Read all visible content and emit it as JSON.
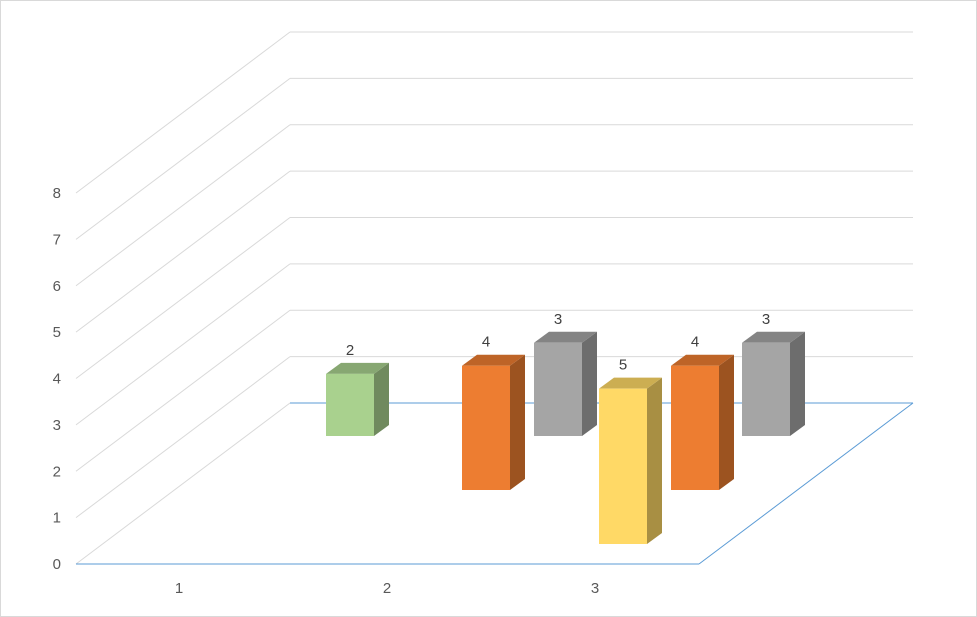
{
  "chart_data": {
    "type": "bar",
    "subtype": "3d-clustered-column",
    "categories": [
      "1",
      "2",
      "3"
    ],
    "ylim": [
      0,
      8
    ],
    "yticks": [
      "0",
      "1",
      "2",
      "3",
      "4",
      "5",
      "6",
      "7",
      "8"
    ],
    "grid": true,
    "legend": "none",
    "series": [
      {
        "color": "#A9D18E",
        "values": [
          2,
          null,
          null
        ]
      },
      {
        "color": "#ED7D31",
        "values": [
          null,
          4,
          4
        ]
      },
      {
        "color": "#A5A5A5",
        "values": [
          null,
          3,
          3
        ]
      },
      {
        "color": "#FFD966",
        "values": [
          null,
          null,
          5
        ]
      }
    ],
    "bars": [
      {
        "category": "1",
        "series_index": 0,
        "value": 2,
        "label": "2",
        "depth": 0
      },
      {
        "category": "2",
        "series_index": 1,
        "value": 4,
        "label": "4",
        "depth": 2
      },
      {
        "category": "2",
        "series_index": 2,
        "value": 3,
        "label": "3",
        "depth": 0
      },
      {
        "category": "3",
        "series_index": 3,
        "value": 5,
        "label": "5",
        "depth": 3
      },
      {
        "category": "3",
        "series_index": 1,
        "value": 4,
        "label": "4",
        "depth": 2
      },
      {
        "category": "3",
        "series_index": 2,
        "value": 3,
        "label": "3",
        "depth": 0
      }
    ],
    "colors": {
      "grid": "#d9d9d9",
      "floor": "#5b9bd5",
      "axis_text": "#595959"
    }
  }
}
